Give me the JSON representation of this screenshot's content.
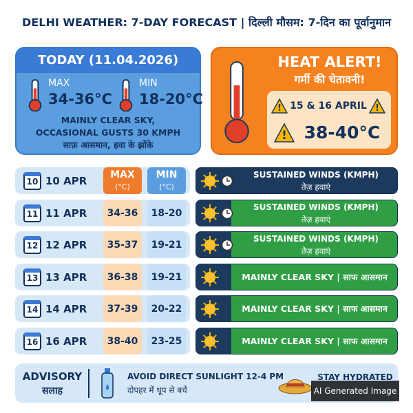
{
  "title": "DELHI WEATHER: 7-DAY FORECAST | दिल्ली मौसम: 7-दिन का पूर्वानुमान",
  "today": {
    "heading": "TODAY (11.04.2026)",
    "max_label": "MAX",
    "max": "34-36°C",
    "min_label": "MIN",
    "min": "18-20°C",
    "summary": [
      "MAINLY CLEAR SKY,",
      "OCCASIONAL GUSTS 30 KMPH",
      "साफ़ आसमान, हवा के झोंके"
    ]
  },
  "alert": {
    "heading": "HEAT ALERT!",
    "heading_hi": "गर्मी की चेतावनी!",
    "dates": "15 & 16 APRIL",
    "range": "38-40°C"
  },
  "table": {
    "max_header": "MAX",
    "max_unit": "(°C)",
    "min_header": "MIN",
    "min_unit": "(°C)",
    "rows": [
      {
        "day": "10",
        "date": "10 APR",
        "condition": "SUSTAINED WINDS (KMPH)",
        "condition_hi": "तेज़ हवाएं"
      },
      {
        "day": "11",
        "date": "11 APR",
        "max": "34-36",
        "min": "18-20",
        "condition": "SUSTAINED WINDS (KMPH)",
        "condition_hi": "तेज़ हवाएं"
      },
      {
        "day": "12",
        "date": "12 APR",
        "max": "35-37",
        "min": "19-21",
        "condition": "SUSTAINED WINDS (KMPH)",
        "condition_hi": "तेज़ हवाएं"
      },
      {
        "day": "13",
        "date": "13 APR",
        "max": "36-38",
        "min": "19-21",
        "condition": "MAINLY CLEAR SKY | साफ आसमान"
      },
      {
        "day": "14",
        "date": "14 APR",
        "max": "37-39",
        "min": "20-22",
        "condition": "MAINLY CLEAR SKY | साफ आसमान"
      },
      {
        "day": "16",
        "date": "16 APR",
        "max": "38-40",
        "min": "23-25",
        "condition": "MAINLY CLEAR SKY | साफ आसमान"
      }
    ]
  },
  "advisory": {
    "label": "ADVISORY",
    "label_hi": "सलाह",
    "tip1": "AVOID DIRECT SUNLIGHT 12-4 PM",
    "tip1_hi": "दोपहर में धूप से बचें",
    "tip2": "STAY HYDRATED"
  },
  "watermark": "AI Generated Image"
}
